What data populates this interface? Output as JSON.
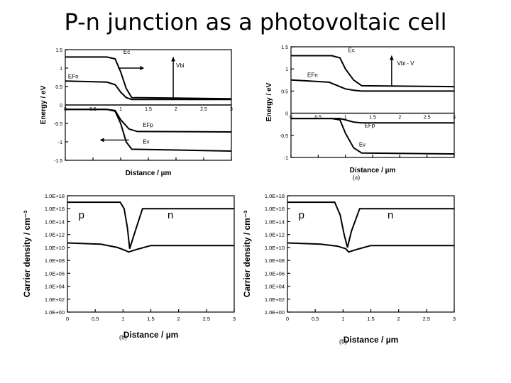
{
  "title": "P-n junction as a photovoltaic cell",
  "chart_data": [
    {
      "type": "line",
      "panel": "top-left",
      "xlabel": "Distance / µm",
      "ylabel": "Energy / eV",
      "xlim": [
        0,
        3
      ],
      "ylim": [
        -1.5,
        1.5
      ],
      "xticks": [
        "0",
        "0.5",
        "1",
        "1.5",
        "2",
        "2.5",
        "3"
      ],
      "yticks": [
        "1.5",
        "1",
        "0.5",
        "0",
        "-0.5",
        "-1",
        "-1.5"
      ],
      "series": [
        {
          "name": "Ec",
          "x": [
            0,
            0.75,
            0.9,
            1.0,
            1.1,
            1.2,
            3
          ],
          "y": [
            1.3,
            1.3,
            1.25,
            0.9,
            0.45,
            0.2,
            0.17
          ]
        },
        {
          "name": "EFn",
          "x": [
            0,
            0.75,
            0.9,
            1.0,
            1.1,
            1.2,
            3
          ],
          "y": [
            0.65,
            0.62,
            0.55,
            0.35,
            0.2,
            0.15,
            0.15
          ]
        },
        {
          "name": "EFp",
          "x": [
            0,
            0.75,
            0.9,
            1.0,
            1.15,
            1.3,
            3
          ],
          "y": [
            -0.12,
            -0.12,
            -0.15,
            -0.4,
            -0.65,
            -0.72,
            -0.73
          ]
        },
        {
          "name": "Ev",
          "x": [
            0,
            0.75,
            0.9,
            1.0,
            1.1,
            1.2,
            3
          ],
          "y": [
            -0.12,
            -0.12,
            -0.17,
            -0.5,
            -1.0,
            -1.2,
            -1.25
          ]
        }
      ],
      "annotations": [
        "Ec",
        "EFn",
        "Vbi",
        "EFp",
        "Ev"
      ]
    },
    {
      "type": "line",
      "panel": "top-right",
      "xlabel": "Distance / µm",
      "ylabel": "Energy / eV",
      "xlim": [
        0,
        3
      ],
      "ylim": [
        -1,
        1.5
      ],
      "xticks": [
        "0",
        "0.5",
        "1",
        "1.5",
        "2",
        "2.5",
        "3"
      ],
      "yticks": [
        "1.5",
        "1",
        "0.5",
        "0",
        "-0.5",
        "-1"
      ],
      "series": [
        {
          "name": "Ec",
          "x": [
            0,
            0.75,
            0.9,
            1.0,
            1.15,
            1.3,
            3
          ],
          "y": [
            1.3,
            1.3,
            1.25,
            1.0,
            0.75,
            0.62,
            0.6
          ]
        },
        {
          "name": "EFn",
          "x": [
            0,
            0.7,
            0.9,
            1.0,
            1.15,
            1.3,
            3
          ],
          "y": [
            0.75,
            0.7,
            0.6,
            0.55,
            0.52,
            0.5,
            0.5
          ]
        },
        {
          "name": "EFp",
          "x": [
            0,
            0.7,
            0.9,
            1.0,
            1.15,
            1.3,
            3
          ],
          "y": [
            -0.12,
            -0.12,
            -0.12,
            -0.15,
            -0.2,
            -0.22,
            -0.22
          ]
        },
        {
          "name": "Ev",
          "x": [
            0,
            0.75,
            0.9,
            1.0,
            1.15,
            1.3,
            3
          ],
          "y": [
            -0.12,
            -0.12,
            -0.15,
            -0.45,
            -0.78,
            -0.9,
            -0.92
          ]
        }
      ],
      "annotations": [
        "Ec",
        "Vbi - V",
        "EFn",
        "EFp",
        "Ev"
      ],
      "caption": "(a)"
    },
    {
      "type": "line",
      "panel": "bottom-left",
      "xlabel": "Distance / µm",
      "ylabel": "Carrier density / cm⁻³",
      "xlim": [
        0,
        3
      ],
      "ylim": [
        0,
        18
      ],
      "yscale": "log",
      "xticks": [
        "0",
        "0.5",
        "1",
        "1.5",
        "2",
        "2.5",
        "3"
      ],
      "yticks": [
        "1.0E+18",
        "1.0E+16",
        "1.0E+14",
        "1.0E+12",
        "1.0E+10",
        "1.0E+08",
        "1.0E+06",
        "1.0E+04",
        "1.0E+02",
        "1.0E+00"
      ],
      "series": [
        {
          "x": [
            0,
            0.95,
            1.02,
            1.08,
            1.12,
            1.2,
            1.35,
            3
          ],
          "y": [
            17.0,
            17.0,
            16.0,
            13.0,
            9.8,
            12.0,
            16.0,
            16.0
          ]
        },
        {
          "x": [
            0,
            0.6,
            0.9,
            1.05,
            1.1,
            1.25,
            1.5,
            3
          ],
          "y": [
            10.7,
            10.5,
            10.0,
            9.5,
            9.3,
            9.7,
            10.3,
            10.3
          ]
        }
      ],
      "annotations": [
        "p",
        "n"
      ],
      "caption": "(b)"
    },
    {
      "type": "line",
      "panel": "bottom-right",
      "xlabel": "Distance / µm",
      "ylabel": "Carrier density / cm⁻³",
      "xlim": [
        0,
        3
      ],
      "ylim": [
        0,
        18
      ],
      "yscale": "log",
      "xticks": [
        "0",
        "0.5",
        "1",
        "1.5",
        "2",
        "2.5",
        "3"
      ],
      "yticks": [
        "1.0E+18",
        "1.0E+16",
        "1.0E+14",
        "1.0E+12",
        "1.0E+10",
        "1.0E+08",
        "1.0E+06",
        "1.0E+04",
        "1.0E+02",
        "1.0E+00"
      ],
      "series": [
        {
          "x": [
            0,
            0.85,
            0.95,
            1.02,
            1.08,
            1.15,
            1.3,
            3
          ],
          "y": [
            17.0,
            17.0,
            15.0,
            12.0,
            10.0,
            12.5,
            16.0,
            16.0
          ]
        },
        {
          "x": [
            0,
            0.6,
            0.9,
            1.05,
            1.1,
            1.25,
            1.5,
            3
          ],
          "y": [
            10.7,
            10.5,
            10.2,
            9.8,
            9.3,
            9.7,
            10.3,
            10.3
          ]
        }
      ],
      "annotations": [
        "p",
        "n"
      ],
      "caption": "(b)"
    }
  ]
}
